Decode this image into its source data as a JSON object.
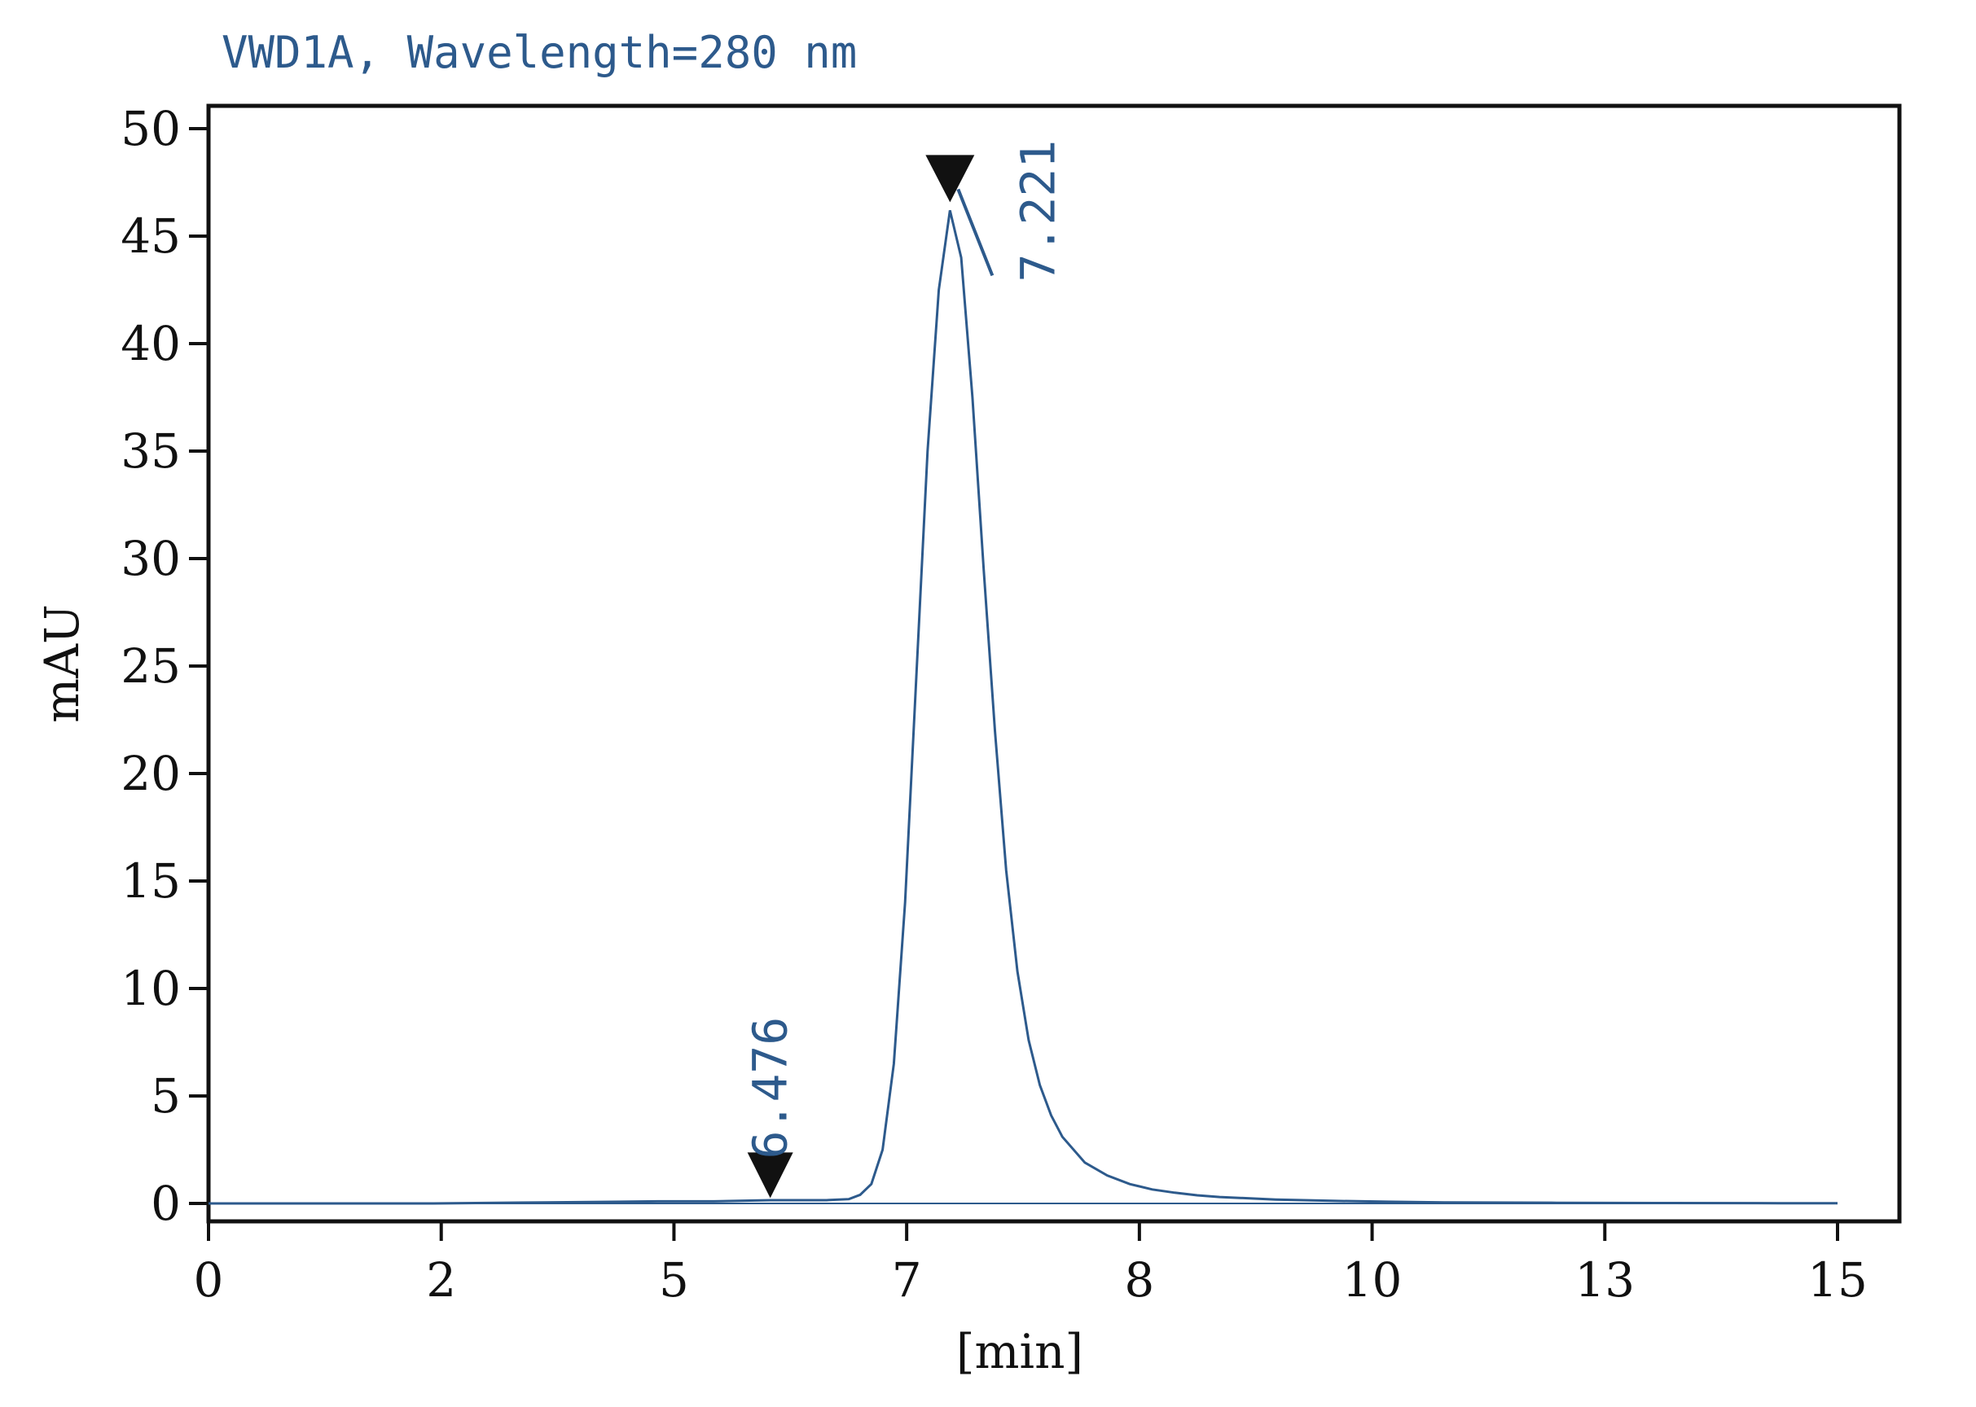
{
  "colors": {
    "trace": "#2d5a8c",
    "title": "#2d5a8c",
    "axis": "#111111",
    "marker": "#111111",
    "background": "#ffffff"
  },
  "chart_data": {
    "type": "line",
    "title": "VWD1A, Wavelength=280 nm",
    "xlabel": "[min]",
    "ylabel": "mAU",
    "xlim": [
      0,
      14.5
    ],
    "ylim": [
      -1,
      50
    ],
    "x_ticks": [
      "0",
      "2",
      "5",
      "7",
      "8",
      "10",
      "13",
      "15"
    ],
    "y_ticks": [
      "0",
      "5",
      "10",
      "15",
      "20",
      "25",
      "30",
      "35",
      "40",
      "45",
      "50"
    ],
    "grid": false,
    "series": [
      {
        "x": [
          0,
          1,
          2,
          3,
          4,
          4.5,
          5,
          5.5,
          5.7,
          5.8,
          5.9,
          6.0,
          6.1,
          6.2,
          6.3,
          6.4,
          6.5,
          6.6,
          6.7,
          6.8,
          6.9,
          7.0,
          7.1,
          7.2,
          7.3,
          7.4,
          7.5,
          7.6,
          7.8,
          8.0,
          8.2,
          8.4,
          8.6,
          8.8,
          9.0,
          9.5,
          10,
          10.5,
          11,
          12,
          13,
          14,
          14.5
        ],
        "y": [
          0,
          0,
          0,
          0.05,
          0.1,
          0.1,
          0.15,
          0.15,
          0.2,
          0.4,
          0.9,
          2.5,
          6.5,
          14,
          24.5,
          35,
          42.5,
          46.2,
          44,
          37.5,
          29.5,
          22,
          15.5,
          10.8,
          7.6,
          5.5,
          4.1,
          3.1,
          1.9,
          1.3,
          0.9,
          0.65,
          0.5,
          0.38,
          0.3,
          0.18,
          0.12,
          0.08,
          0.05,
          0.03,
          0.02,
          0.01,
          0.01
        ]
      }
    ],
    "annotations": [
      {
        "text": "6.476",
        "x": 5.0,
        "y": 0.1
      },
      {
        "text": "7.221",
        "x": 6.6,
        "y": 46.5
      }
    ]
  }
}
